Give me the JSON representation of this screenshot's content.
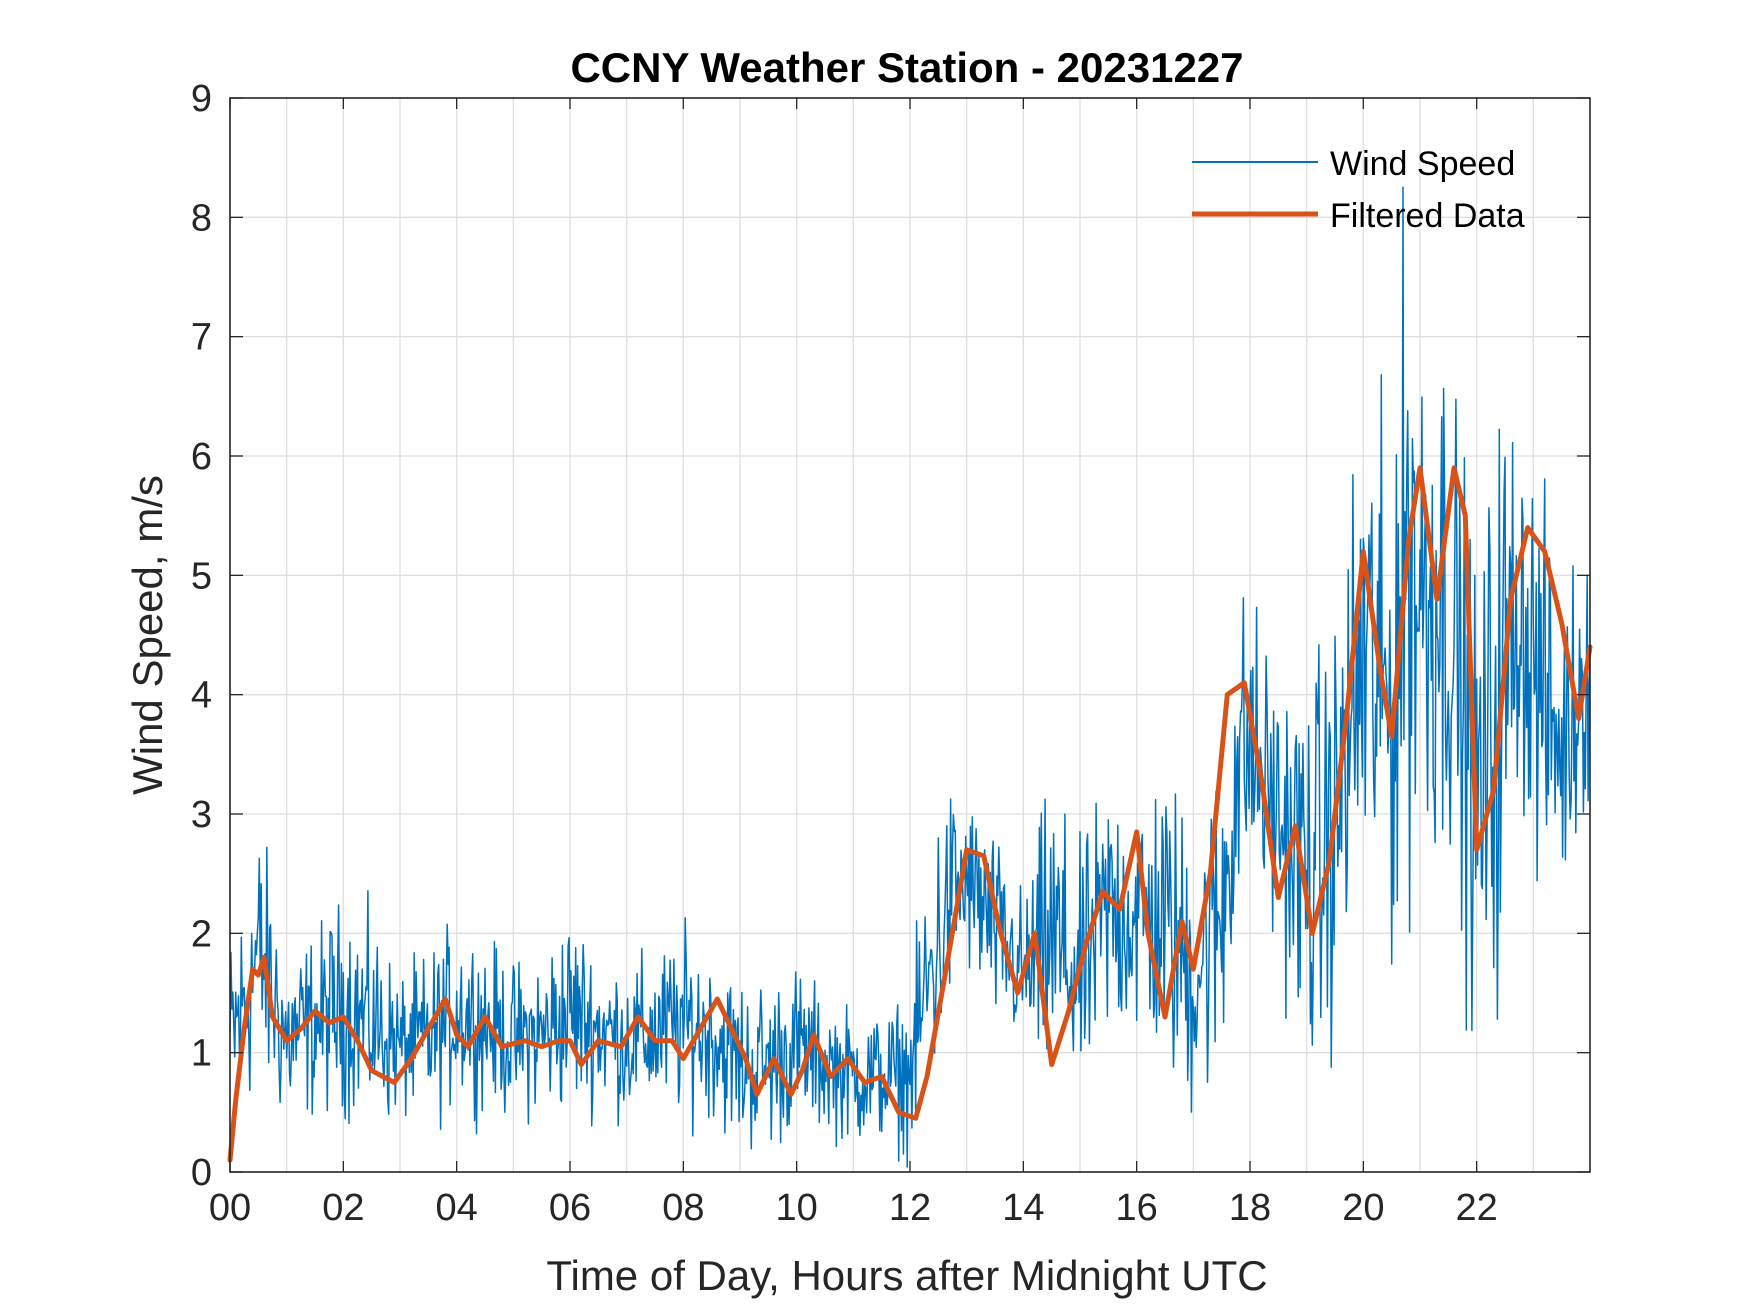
{
  "chart_data": {
    "type": "line",
    "title": "CCNY Weather Station - 20231227",
    "xlabel": "Time of Day, Hours after Midnight UTC",
    "ylabel": "Wind Speed, m/s",
    "xlim": [
      0,
      24
    ],
    "ylim": [
      0,
      9
    ],
    "x_ticks": [
      0,
      2,
      4,
      6,
      8,
      10,
      12,
      14,
      16,
      18,
      20,
      22
    ],
    "x_tick_labels": [
      "00",
      "02",
      "04",
      "06",
      "08",
      "10",
      "12",
      "14",
      "16",
      "18",
      "20",
      "22"
    ],
    "y_ticks": [
      0,
      1,
      2,
      3,
      4,
      5,
      6,
      7,
      8,
      9
    ],
    "y_tick_labels": [
      "0",
      "1",
      "2",
      "3",
      "4",
      "5",
      "6",
      "7",
      "8",
      "9"
    ],
    "grid": true,
    "legend_position": "top-right",
    "series": [
      {
        "name": "Wind Speed",
        "color": "#0072BD",
        "style": "thin noisy line, ~1-minute samples (approximate envelope)",
        "x": [
          0,
          0.25,
          0.5,
          0.75,
          1,
          1.5,
          2,
          2.5,
          3,
          3.5,
          4,
          4.5,
          5,
          5.5,
          6,
          6.5,
          7,
          7.5,
          8,
          8.5,
          9,
          9.5,
          10,
          10.5,
          11,
          11.5,
          12,
          12.25,
          12.5,
          12.75,
          13,
          13.25,
          13.5,
          14,
          14.5,
          15,
          15.5,
          16,
          16.5,
          17,
          17.5,
          17.75,
          18,
          18.5,
          19,
          19.25,
          19.5,
          20,
          20.5,
          20.75,
          21,
          21.5,
          21.75,
          22,
          22.5,
          22.75,
          23,
          23.5,
          24
        ],
        "min": [
          0.0,
          0.2,
          0.5,
          0.3,
          0.2,
          0.3,
          0.3,
          0.2,
          0.3,
          0.2,
          0.4,
          0.4,
          0.3,
          0.3,
          0.3,
          0.4,
          0.3,
          0.3,
          0.3,
          0.3,
          0.0,
          0.0,
          0.2,
          0.2,
          0.1,
          0.1,
          0.0,
          0.2,
          0.5,
          1.2,
          1.5,
          1.2,
          1.0,
          0.8,
          0.3,
          0.3,
          0.8,
          0.8,
          0.5,
          0.1,
          0.5,
          1.5,
          2.0,
          1.5,
          0.5,
          0.4,
          0.8,
          1.5,
          1.2,
          1.5,
          2.0,
          2.0,
          1.4,
          0.4,
          1.0,
          3.0,
          2.0,
          2.0,
          2.8
        ],
        "max": [
          2.2,
          2.6,
          3.2,
          2.7,
          2.0,
          2.2,
          2.5,
          2.3,
          1.8,
          2.0,
          2.3,
          2.1,
          1.9,
          2.0,
          2.4,
          2.0,
          1.9,
          2.0,
          2.2,
          2.0,
          1.8,
          1.8,
          1.9,
          1.6,
          1.5,
          1.5,
          1.6,
          2.7,
          3.3,
          3.5,
          3.3,
          3.3,
          3.0,
          2.5,
          3.6,
          2.9,
          3.6,
          3.5,
          3.7,
          3.2,
          3.8,
          5.2,
          5.2,
          4.4,
          4.5,
          4.8,
          5.0,
          7.2,
          6.5,
          9.0,
          7.8,
          7.7,
          6.5,
          5.5,
          7.3,
          6.5,
          6.5,
          5.0,
          6.0
        ]
      },
      {
        "name": "Filtered Data",
        "color": "#D95319",
        "x": [
          0,
          0.1,
          0.25,
          0.4,
          0.5,
          0.6,
          0.75,
          1.0,
          1.25,
          1.5,
          1.75,
          2.0,
          2.25,
          2.5,
          2.9,
          3.2,
          3.5,
          3.8,
          4.0,
          4.2,
          4.5,
          4.8,
          5.2,
          5.5,
          5.8,
          6.0,
          6.2,
          6.5,
          6.9,
          7.2,
          7.5,
          7.8,
          8.0,
          8.3,
          8.6,
          8.9,
          9.1,
          9.3,
          9.6,
          9.9,
          10.1,
          10.3,
          10.6,
          10.9,
          11.2,
          11.5,
          11.8,
          12.1,
          12.3,
          12.6,
          13.0,
          13.3,
          13.6,
          13.9,
          14.2,
          14.5,
          14.8,
          15.1,
          15.4,
          15.7,
          16.0,
          16.2,
          16.5,
          16.8,
          17.0,
          17.3,
          17.6,
          17.9,
          18.2,
          18.5,
          18.8,
          19.1,
          19.4,
          19.7,
          20.0,
          20.3,
          20.5,
          20.8,
          21.0,
          21.3,
          21.6,
          21.8,
          22.0,
          22.3,
          22.6,
          22.9,
          23.2,
          23.5,
          23.8,
          24.0
        ],
        "y": [
          0.1,
          0.6,
          1.2,
          1.7,
          1.65,
          1.8,
          1.3,
          1.1,
          1.2,
          1.35,
          1.25,
          1.3,
          1.1,
          0.85,
          0.75,
          0.95,
          1.2,
          1.45,
          1.15,
          1.05,
          1.3,
          1.05,
          1.1,
          1.05,
          1.1,
          1.1,
          0.9,
          1.1,
          1.05,
          1.3,
          1.1,
          1.1,
          0.95,
          1.2,
          1.45,
          1.15,
          0.95,
          0.65,
          0.95,
          0.65,
          0.85,
          1.15,
          0.8,
          0.95,
          0.75,
          0.8,
          0.5,
          0.45,
          0.8,
          1.6,
          2.7,
          2.65,
          2.0,
          1.5,
          2.0,
          0.9,
          1.35,
          1.9,
          2.35,
          2.2,
          2.85,
          2.0,
          1.3,
          2.1,
          1.7,
          2.5,
          4.0,
          4.1,
          3.3,
          2.3,
          2.9,
          2.0,
          2.6,
          3.8,
          5.2,
          4.2,
          3.65,
          5.3,
          5.9,
          4.8,
          5.9,
          5.5,
          2.7,
          3.2,
          4.8,
          5.4,
          5.2,
          4.6,
          3.8,
          4.4
        ]
      }
    ]
  }
}
